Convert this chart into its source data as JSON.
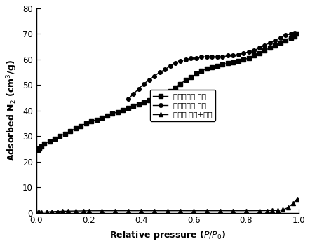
{
  "title": "",
  "xlabel": "Relative pressure ($P/P_0$)",
  "ylabel": "Adsorbed N$_2$ (cm$^3$/g)",
  "xlim": [
    0.0,
    1.0
  ],
  "ylim": [
    0,
    80
  ],
  "yticks": [
    0,
    10,
    20,
    30,
    40,
    50,
    60,
    70,
    80
  ],
  "xticks": [
    0.0,
    0.2,
    0.4,
    0.6,
    0.8,
    1.0
  ],
  "legend_labels": [
    "磁性吸附剂 吸附",
    "磁性吸附剂 脱附",
    "煎矸石 吸附+脱附"
  ],
  "adsorption_x": [
    0.005,
    0.01,
    0.02,
    0.03,
    0.05,
    0.07,
    0.09,
    0.11,
    0.13,
    0.15,
    0.17,
    0.19,
    0.21,
    0.23,
    0.25,
    0.27,
    0.29,
    0.31,
    0.33,
    0.35,
    0.37,
    0.39,
    0.41,
    0.43,
    0.45,
    0.47,
    0.49,
    0.51,
    0.53,
    0.55,
    0.57,
    0.59,
    0.61,
    0.63,
    0.65,
    0.67,
    0.69,
    0.71,
    0.73,
    0.75,
    0.77,
    0.79,
    0.81,
    0.83,
    0.85,
    0.87,
    0.89,
    0.91,
    0.93,
    0.95,
    0.97,
    0.985,
    0.995
  ],
  "adsorption_y": [
    24.5,
    25.0,
    26.0,
    27.0,
    28.0,
    29.0,
    30.0,
    31.0,
    32.0,
    33.0,
    34.0,
    35.0,
    35.8,
    36.5,
    37.3,
    38.0,
    38.8,
    39.5,
    40.3,
    41.0,
    41.8,
    42.5,
    43.3,
    44.0,
    44.8,
    45.5,
    46.5,
    47.5,
    49.0,
    50.5,
    52.0,
    53.0,
    54.5,
    55.5,
    56.5,
    57.0,
    57.5,
    58.0,
    58.5,
    59.0,
    59.5,
    60.0,
    60.5,
    61.5,
    62.5,
    63.5,
    64.5,
    65.5,
    66.5,
    67.5,
    68.5,
    69.0,
    70.0
  ],
  "desorption_x": [
    0.995,
    0.985,
    0.97,
    0.95,
    0.93,
    0.91,
    0.89,
    0.87,
    0.85,
    0.83,
    0.81,
    0.79,
    0.77,
    0.75,
    0.73,
    0.71,
    0.69,
    0.67,
    0.65,
    0.63,
    0.61,
    0.59,
    0.57,
    0.55,
    0.53,
    0.51,
    0.49,
    0.47,
    0.45,
    0.43,
    0.41,
    0.39,
    0.37,
    0.35
  ],
  "desorption_y": [
    70.0,
    70.5,
    70.0,
    69.5,
    68.5,
    67.5,
    66.5,
    65.5,
    64.5,
    63.5,
    63.0,
    62.5,
    62.0,
    61.5,
    61.5,
    61.0,
    61.0,
    61.0,
    61.0,
    61.0,
    60.5,
    60.5,
    60.0,
    59.5,
    58.5,
    57.5,
    56.0,
    55.0,
    53.5,
    52.0,
    50.5,
    48.5,
    46.5,
    44.5
  ],
  "gangue_x": [
    0.005,
    0.01,
    0.02,
    0.04,
    0.06,
    0.08,
    0.1,
    0.12,
    0.15,
    0.18,
    0.2,
    0.25,
    0.3,
    0.35,
    0.4,
    0.45,
    0.5,
    0.55,
    0.6,
    0.65,
    0.7,
    0.75,
    0.8,
    0.85,
    0.88,
    0.9,
    0.92,
    0.94,
    0.96,
    0.98,
    0.995
  ],
  "gangue_y": [
    0.05,
    0.1,
    0.2,
    0.35,
    0.45,
    0.55,
    0.6,
    0.65,
    0.7,
    0.75,
    0.78,
    0.8,
    0.8,
    0.8,
    0.8,
    0.8,
    0.8,
    0.8,
    0.8,
    0.8,
    0.8,
    0.8,
    0.8,
    0.82,
    0.85,
    0.88,
    0.95,
    1.2,
    2.0,
    3.8,
    5.5
  ],
  "line_color": "#000000",
  "marker_adsorption": "s",
  "marker_desorption": "o",
  "marker_gangue": "^",
  "markersize": 4,
  "linewidth": 1.0
}
